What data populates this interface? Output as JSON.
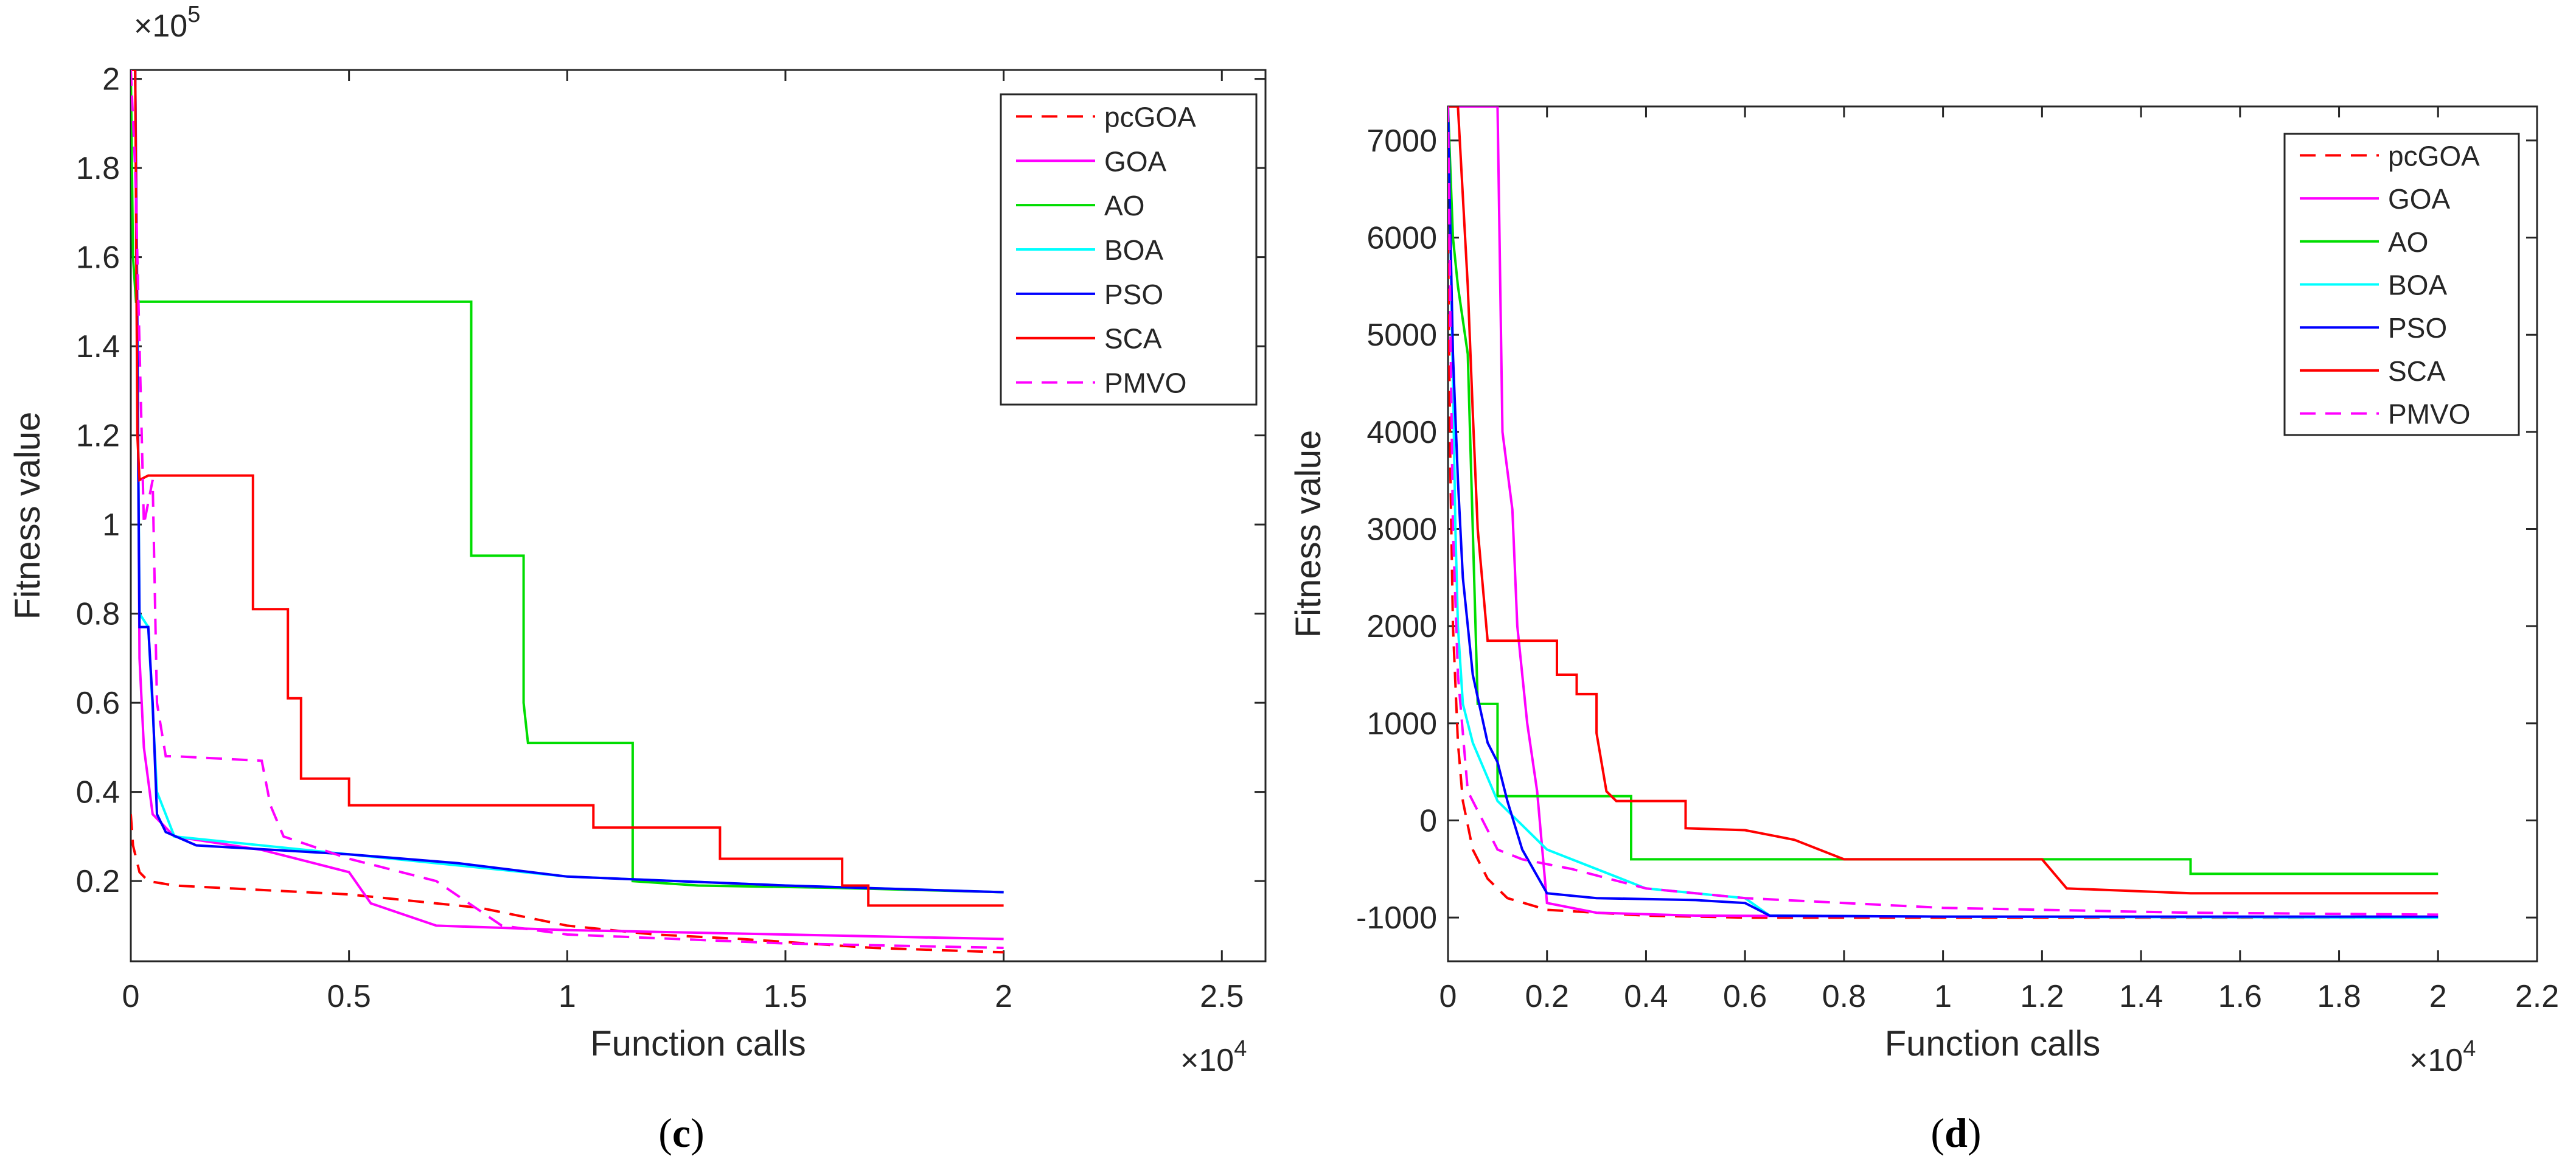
{
  "chart_data": [
    {
      "type": "line",
      "panel_label": "(c)",
      "panel_label_parts": [
        "(",
        "c",
        ")"
      ],
      "xlabel": "Function calls",
      "ylabel": "Fitness value",
      "x_exponent_label": "×10",
      "x_exponent_power": "4",
      "y_exponent_label": "×10",
      "y_exponent_power": "5",
      "xlim": [
        0,
        2.6
      ],
      "ylim": [
        0.02,
        2.02
      ],
      "xticks": [
        0,
        0.5,
        1,
        1.5,
        2,
        2.5
      ],
      "xtick_labels": [
        "0",
        "0.5",
        "1",
        "1.5",
        "2",
        "2.5"
      ],
      "yticks": [
        0.2,
        0.4,
        0.6,
        0.8,
        1.0,
        1.2,
        1.4,
        1.6,
        1.8,
        2.0
      ],
      "ytick_labels": [
        "0.2",
        "0.4",
        "0.6",
        "0.8",
        "1",
        "1.2",
        "1.4",
        "1.6",
        "1.8",
        "2"
      ],
      "legend_position": "top-right",
      "series": [
        {
          "name": "pcGOA",
          "color": "#FF0000",
          "dash": "dashed",
          "x": [
            0,
            0.005,
            0.02,
            0.04,
            0.1,
            0.5,
            0.8,
            1.0,
            1.2,
            1.4,
            1.7,
            2.0
          ],
          "y": [
            0.35,
            0.28,
            0.22,
            0.2,
            0.19,
            0.17,
            0.14,
            0.1,
            0.08,
            0.07,
            0.05,
            0.04
          ]
        },
        {
          "name": "GOA",
          "color": "#FF00FF",
          "dash": "solid",
          "x": [
            0,
            0.01,
            0.015,
            0.018,
            0.02,
            0.03,
            0.05,
            0.1,
            0.3,
            0.5,
            0.55,
            0.7,
            1.0,
            1.5,
            2.0
          ],
          "y": [
            2.02,
            2.02,
            1.5,
            1.0,
            0.7,
            0.5,
            0.35,
            0.3,
            0.27,
            0.22,
            0.15,
            0.1,
            0.09,
            0.08,
            0.07
          ]
        },
        {
          "name": "AO",
          "color": "#00DD00",
          "dash": "solid",
          "x": [
            0,
            0.005,
            0.012,
            0.02,
            0.78,
            0.78,
            0.9,
            0.9,
            0.91,
            1.15,
            1.15,
            1.3,
            1.6,
            2.0
          ],
          "y": [
            2.02,
            1.6,
            1.5,
            1.5,
            1.5,
            0.93,
            0.93,
            0.6,
            0.51,
            0.51,
            0.2,
            0.19,
            0.185,
            0.175
          ]
        },
        {
          "name": "BOA",
          "color": "#00FFFF",
          "dash": "solid",
          "x": [
            0,
            0.01,
            0.02,
            0.04,
            0.06,
            0.1,
            0.5,
            1.0,
            1.5,
            2.0
          ],
          "y": [
            2.02,
            2.02,
            0.8,
            0.77,
            0.4,
            0.3,
            0.26,
            0.21,
            0.19,
            0.175
          ]
        },
        {
          "name": "PSO",
          "color": "#0000FF",
          "dash": "solid",
          "x": [
            0,
            0.01,
            0.02,
            0.04,
            0.05,
            0.06,
            0.08,
            0.15,
            0.5,
            0.75,
            1.0,
            1.5,
            2.0
          ],
          "y": [
            2.02,
            2.02,
            0.77,
            0.77,
            0.6,
            0.35,
            0.31,
            0.28,
            0.26,
            0.24,
            0.21,
            0.19,
            0.175
          ]
        },
        {
          "name": "SCA",
          "color": "#FF0000",
          "dash": "solid",
          "x": [
            0,
            0.01,
            0.015,
            0.02,
            0.04,
            0.28,
            0.28,
            0.36,
            0.36,
            0.39,
            0.39,
            0.5,
            0.5,
            1.06,
            1.06,
            1.35,
            1.35,
            1.63,
            1.63,
            1.69,
            1.69,
            2.0
          ],
          "y": [
            2.02,
            2.02,
            1.2,
            1.1,
            1.11,
            1.11,
            0.81,
            0.81,
            0.61,
            0.61,
            0.43,
            0.43,
            0.37,
            0.37,
            0.32,
            0.32,
            0.25,
            0.25,
            0.19,
            0.19,
            0.145,
            0.145
          ]
        },
        {
          "name": "PMVO",
          "color": "#FF00FF",
          "dash": "dashed",
          "x": [
            0,
            0.01,
            0.03,
            0.05,
            0.06,
            0.08,
            0.1,
            0.3,
            0.32,
            0.35,
            0.5,
            0.7,
            0.85,
            1.0,
            1.5,
            2.0
          ],
          "y": [
            2.02,
            1.8,
            1.0,
            1.1,
            0.6,
            0.48,
            0.48,
            0.47,
            0.37,
            0.3,
            0.25,
            0.2,
            0.1,
            0.08,
            0.06,
            0.05
          ]
        }
      ]
    },
    {
      "type": "line",
      "panel_label": "(d)",
      "panel_label_parts": [
        "(",
        "d",
        ")"
      ],
      "xlabel": "Function calls",
      "ylabel": "Fitness value",
      "x_exponent_label": "×10",
      "x_exponent_power": "4",
      "xlim": [
        0,
        2.2
      ],
      "ylim": [
        -1450,
        7350
      ],
      "xticks": [
        0,
        0.2,
        0.4,
        0.6,
        0.8,
        1.0,
        1.2,
        1.4,
        1.6,
        1.8,
        2.0,
        2.2
      ],
      "xtick_labels": [
        "0",
        "0.2",
        "0.4",
        "0.6",
        "0.8",
        "1",
        "1.2",
        "1.4",
        "1.6",
        "1.8",
        "2",
        "2.2"
      ],
      "yticks": [
        -1000,
        0,
        1000,
        2000,
        3000,
        4000,
        5000,
        6000,
        7000
      ],
      "ytick_labels": [
        "-1000",
        "0",
        "1000",
        "2000",
        "3000",
        "4000",
        "5000",
        "6000",
        "7000"
      ],
      "legend_position": "top-right",
      "series": [
        {
          "name": "pcGOA",
          "color": "#FF0000",
          "dash": "dashed",
          "x": [
            0,
            0.005,
            0.01,
            0.02,
            0.03,
            0.05,
            0.08,
            0.12,
            0.2,
            0.4,
            0.6,
            1.0,
            2.0
          ],
          "y": [
            6000,
            3500,
            2000,
            800,
            200,
            -300,
            -600,
            -800,
            -920,
            -980,
            -1000,
            -1000,
            -1000
          ]
        },
        {
          "name": "GOA",
          "color": "#FF00FF",
          "dash": "solid",
          "x": [
            0,
            0.02,
            0.03,
            0.1,
            0.1,
            0.11,
            0.13,
            0.14,
            0.16,
            0.18,
            0.2,
            0.3,
            0.5,
            1.0,
            2.0
          ],
          "y": [
            7350,
            7350,
            7350,
            7350,
            7350,
            4000,
            3200,
            2000,
            1000,
            300,
            -850,
            -950,
            -980,
            -990,
            -1000
          ]
        },
        {
          "name": "AO",
          "color": "#00DD00",
          "dash": "solid",
          "x": [
            0,
            0.01,
            0.02,
            0.04,
            0.05,
            0.06,
            0.06,
            0.1,
            0.1,
            0.2,
            0.37,
            0.37,
            1.0,
            1.5,
            1.5,
            2.0
          ],
          "y": [
            7350,
            6000,
            5500,
            4800,
            3000,
            1200,
            1200,
            1200,
            250,
            250,
            250,
            -400,
            -400,
            -400,
            -550,
            -550
          ]
        },
        {
          "name": "BOA",
          "color": "#00FFFF",
          "dash": "solid",
          "x": [
            0,
            0.005,
            0.01,
            0.015,
            0.02,
            0.03,
            0.05,
            0.1,
            0.2,
            0.4,
            0.6,
            0.65,
            1.0,
            2.0
          ],
          "y": [
            7350,
            6000,
            4500,
            3000,
            2000,
            1200,
            800,
            200,
            -300,
            -700,
            -800,
            -980,
            -990,
            -1000
          ]
        },
        {
          "name": "PSO",
          "color": "#0000FF",
          "dash": "solid",
          "x": [
            0,
            0.005,
            0.01,
            0.02,
            0.03,
            0.05,
            0.08,
            0.1,
            0.12,
            0.15,
            0.2,
            0.3,
            0.5,
            0.6,
            0.65,
            1.0,
            2.0
          ],
          "y": [
            7350,
            6000,
            4800,
            3500,
            2500,
            1500,
            800,
            600,
            200,
            -300,
            -750,
            -800,
            -820,
            -850,
            -980,
            -990,
            -990
          ]
        },
        {
          "name": "SCA",
          "color": "#FF0000",
          "dash": "solid",
          "x": [
            0,
            0.02,
            0.04,
            0.05,
            0.06,
            0.08,
            0.15,
            0.22,
            0.22,
            0.26,
            0.26,
            0.3,
            0.3,
            0.32,
            0.34,
            0.48,
            0.48,
            0.6,
            0.7,
            0.8,
            1.0,
            1.2,
            1.25,
            1.5,
            2.0
          ],
          "y": [
            7350,
            7350,
            5500,
            4200,
            3000,
            1850,
            1850,
            1850,
            1500,
            1500,
            1300,
            1300,
            900,
            300,
            200,
            200,
            -80,
            -100,
            -200,
            -400,
            -400,
            -400,
            -700,
            -750,
            -750
          ]
        },
        {
          "name": "PMVO",
          "color": "#FF00FF",
          "dash": "dashed",
          "x": [
            0,
            0.005,
            0.01,
            0.02,
            0.04,
            0.08,
            0.1,
            0.15,
            0.25,
            0.4,
            0.6,
            1.0,
            1.5,
            2.0
          ],
          "y": [
            7350,
            5000,
            3000,
            1500,
            300,
            -100,
            -300,
            -400,
            -500,
            -700,
            -800,
            -900,
            -950,
            -970
          ]
        }
      ]
    }
  ]
}
